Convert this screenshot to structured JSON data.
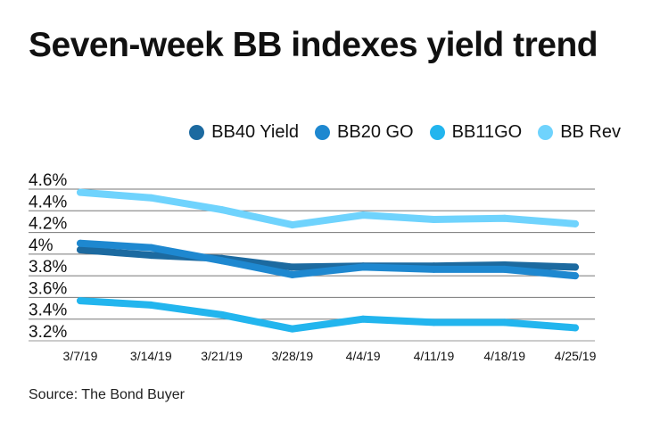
{
  "title": "Seven-week BB indexes yield trend",
  "source": "Source: The Bond Buyer",
  "chart_data": {
    "type": "line",
    "title": "Seven-week BB indexes yield trend",
    "categories": [
      "3/7/19",
      "3/14/19",
      "3/21/19",
      "3/28/19",
      "4/4/19",
      "4/11/19",
      "4/18/19",
      "4/25/19"
    ],
    "ylim": [
      3.2,
      4.6
    ],
    "yticks": [
      4.6,
      4.4,
      4.2,
      4.0,
      3.8,
      3.6,
      3.4,
      3.2
    ],
    "ytick_labels": [
      "4.6%",
      "4.4%",
      "4.2%",
      "4%",
      "3.8%",
      "3.6%",
      "3.4%",
      "3.2%"
    ],
    "grid": true,
    "legend_position": "top-right",
    "series": [
      {
        "name": "BB40 Yield",
        "color": "#1c6aa0",
        "values": [
          4.04,
          3.99,
          3.96,
          3.88,
          3.89,
          3.89,
          3.9,
          3.88
        ]
      },
      {
        "name": "BB20 GO",
        "color": "#1e88d0",
        "values": [
          4.1,
          4.06,
          3.94,
          3.81,
          3.88,
          3.86,
          3.86,
          3.8
        ]
      },
      {
        "name": "BB11GO",
        "color": "#22b5ee",
        "values": [
          3.57,
          3.53,
          3.44,
          3.31,
          3.4,
          3.37,
          3.37,
          3.32
        ]
      },
      {
        "name": "BB Rev",
        "color": "#6fd3fd",
        "values": [
          4.57,
          4.52,
          4.41,
          4.27,
          4.36,
          4.32,
          4.33,
          4.28
        ]
      }
    ]
  }
}
